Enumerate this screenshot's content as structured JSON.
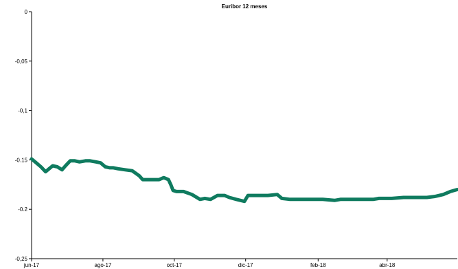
{
  "chart_data": {
    "type": "line",
    "title": "Euribor 12 meses",
    "xlabel": "",
    "ylabel": "",
    "ylim": [
      -0.25,
      0
    ],
    "yticks": [
      0,
      -0.05,
      -0.1,
      -0.15,
      -0.2,
      -0.25
    ],
    "ytick_labels": [
      "0",
      "-0,05",
      "-0,1",
      "-0.15",
      "-0.2",
      "-0,25"
    ],
    "xlim": [
      "2017-06-01",
      "2018-05-31"
    ],
    "xticks": [
      "2017-06-01",
      "2017-08-01",
      "2017-10-01",
      "2017-12-01",
      "2018-02-01",
      "2018-04-01"
    ],
    "xtick_labels": [
      "jun-17",
      "ago-17",
      "oct-17",
      "dic-17",
      "feb-18",
      "abr-18"
    ],
    "grid": false,
    "line_color": "#0f7b5f",
    "series": [
      {
        "x": [
          "2017-06-01",
          "2017-06-05",
          "2017-06-09",
          "2017-06-13",
          "2017-06-16",
          "2017-06-19",
          "2017-06-23",
          "2017-06-27",
          "2017-06-30",
          "2017-07-04",
          "2017-07-08",
          "2017-07-12",
          "2017-07-17",
          "2017-07-21",
          "2017-07-26",
          "2017-07-30",
          "2017-08-03",
          "2017-08-07",
          "2017-08-10",
          "2017-08-14",
          "2017-08-20",
          "2017-08-26",
          "2017-09-01",
          "2017-09-04",
          "2017-09-07",
          "2017-09-12",
          "2017-09-18",
          "2017-09-22",
          "2017-09-26",
          "2017-09-28",
          "2017-09-30",
          "2017-10-03",
          "2017-10-09",
          "2017-10-16",
          "2017-10-23",
          "2017-10-27",
          "2017-11-01",
          "2017-11-07",
          "2017-11-13",
          "2017-11-17",
          "2017-11-23",
          "2017-11-30",
          "2017-12-03",
          "2017-12-10",
          "2017-12-20",
          "2017-12-28",
          "2018-01-01",
          "2018-01-08",
          "2018-01-15",
          "2018-01-25",
          "2018-02-05",
          "2018-02-15",
          "2018-02-20",
          "2018-03-01",
          "2018-03-10",
          "2018-03-20",
          "2018-03-25",
          "2018-04-05",
          "2018-04-15",
          "2018-04-25",
          "2018-05-05",
          "2018-05-12",
          "2018-05-19",
          "2018-05-25",
          "2018-05-31"
        ],
        "y": [
          -0.149,
          -0.153,
          -0.157,
          -0.162,
          -0.159,
          -0.156,
          -0.157,
          -0.16,
          -0.156,
          -0.151,
          -0.151,
          -0.152,
          -0.151,
          -0.151,
          -0.152,
          -0.153,
          -0.157,
          -0.158,
          -0.158,
          -0.159,
          -0.16,
          -0.161,
          -0.166,
          -0.17,
          -0.17,
          -0.17,
          -0.17,
          -0.168,
          -0.17,
          -0.175,
          -0.181,
          -0.182,
          -0.182,
          -0.185,
          -0.19,
          -0.189,
          -0.19,
          -0.186,
          -0.186,
          -0.188,
          -0.19,
          -0.192,
          -0.186,
          -0.186,
          -0.186,
          -0.185,
          -0.189,
          -0.19,
          -0.19,
          -0.19,
          -0.19,
          -0.191,
          -0.19,
          -0.19,
          -0.19,
          -0.19,
          -0.189,
          -0.189,
          -0.188,
          -0.188,
          -0.188,
          -0.187,
          -0.185,
          -0.182,
          -0.18
        ]
      }
    ]
  }
}
